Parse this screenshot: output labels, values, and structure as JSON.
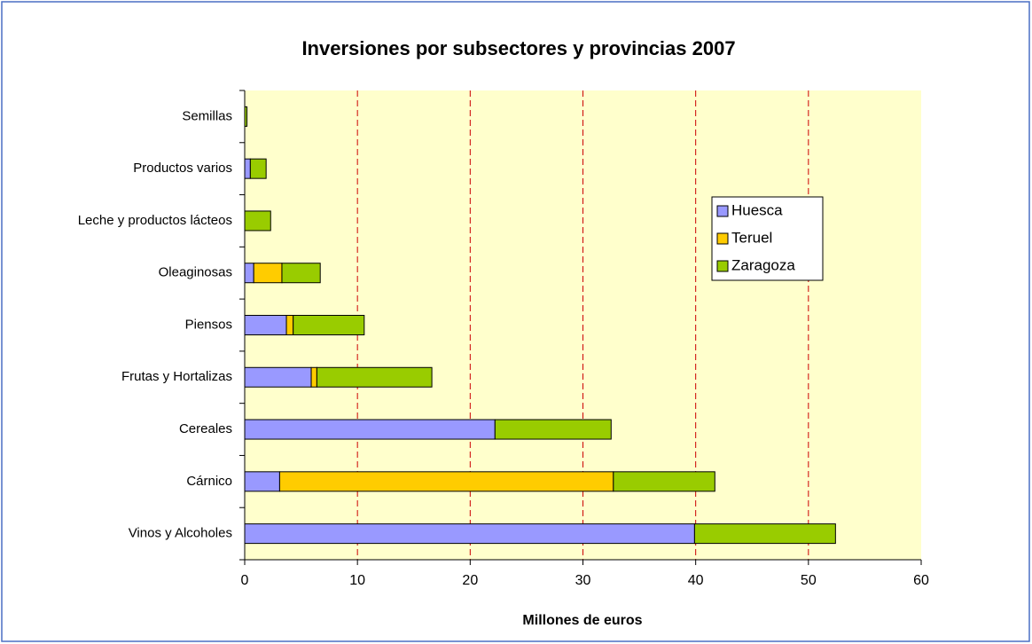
{
  "chart_data": {
    "type": "bar",
    "orientation": "horizontal",
    "stacked": true,
    "title": "Inversiones por subsectores y provincias 2007",
    "x_label": "Millones de euros",
    "categories": [
      "Vinos y Alcoholes",
      "Cárnico",
      "Cereales",
      "Frutas y Hortalizas",
      "Piensos",
      "Oleaginosas",
      "Leche y productos lácteos",
      "Productos varios",
      "Semillas"
    ],
    "series": [
      {
        "name": "Huesca",
        "color": "#9999ff",
        "values": [
          39.9,
          3.1,
          22.2,
          5.9,
          3.7,
          0.8,
          0,
          0.5,
          0
        ]
      },
      {
        "name": "Teruel",
        "color": "#ffcc00",
        "values": [
          0,
          29.6,
          0,
          0.5,
          0.6,
          2.5,
          0,
          0,
          0
        ]
      },
      {
        "name": "Zaragoza",
        "color": "#99cc00",
        "values": [
          12.5,
          9.0,
          10.3,
          10.2,
          6.3,
          3.4,
          2.3,
          1.4,
          0.2
        ]
      }
    ],
    "xlim": [
      0,
      60
    ],
    "xticks": [
      0,
      10,
      20,
      30,
      40,
      50,
      60
    ],
    "grid": true,
    "grid_color": "#cc0000",
    "plot_background": "#ffffcc",
    "legend": "right"
  }
}
